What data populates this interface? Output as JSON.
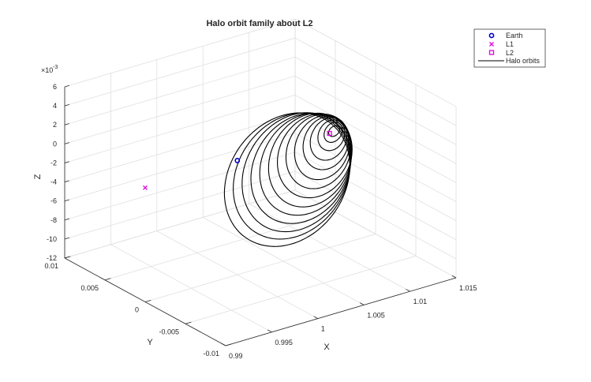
{
  "chart_data": {
    "type": "line3d",
    "title": "Halo orbit family about L2",
    "xlabel": "X",
    "ylabel": "Y",
    "zlabel": "Z",
    "z_exponent": "×10",
    "z_exponent_power": "-3",
    "xlim": [
      0.99,
      1.015
    ],
    "ylim": [
      -0.01,
      0.01
    ],
    "zlim": [
      -12,
      6
    ],
    "x_ticks": [
      "0.99",
      "0.995",
      "1",
      "1.005",
      "1.01",
      "1.015"
    ],
    "y_ticks": [
      "-0.01",
      "-0.005",
      "0",
      "0.005",
      "0.01"
    ],
    "z_ticks": [
      "-12",
      "-10",
      "-8",
      "-6",
      "-4",
      "-2",
      "0",
      "2",
      "4",
      "6"
    ],
    "grid": true,
    "legend_position": "top-right",
    "legend": [
      {
        "label": "Earth",
        "marker": "circle",
        "color": "#0000cc"
      },
      {
        "label": "L1",
        "marker": "x",
        "color": "#e000e0"
      },
      {
        "label": "L2",
        "marker": "square",
        "color": "#e000e0"
      },
      {
        "label": "Halo orbits",
        "marker": "line",
        "color": "#000000"
      }
    ],
    "points": [
      {
        "name": "Earth",
        "x": 1.0,
        "y": 0.0,
        "z": 0.0,
        "color": "#0000cc",
        "marker": "circle"
      },
      {
        "name": "L1",
        "x": 0.99,
        "y": 0.0,
        "z": 0.0,
        "color": "#e000e0",
        "marker": "x"
      },
      {
        "name": "L2",
        "x": 1.01,
        "y": 0.0,
        "z": 0.0,
        "color": "#e000e0",
        "marker": "square"
      }
    ],
    "halo_family": {
      "count": 14,
      "center_x": [
        1.0105,
        1.0104,
        1.0102,
        1.0099,
        1.0096,
        1.0092,
        1.0088,
        1.0084,
        1.0079,
        1.0074,
        1.0069,
        1.0064,
        1.0059,
        1.0054
      ],
      "amp_x": [
        0.0004,
        0.0006,
        0.0008,
        0.0011,
        0.0013,
        0.0016,
        0.0019,
        0.0022,
        0.0025,
        0.0028,
        0.0031,
        0.0034,
        0.0037,
        0.004
      ],
      "amp_y": [
        0.0005,
        0.0009,
        0.0014,
        0.0019,
        0.0024,
        0.0029,
        0.0034,
        0.0039,
        0.0043,
        0.0047,
        0.0051,
        0.0055,
        0.0059,
        0.0063
      ],
      "z_top": [
        0.5,
        0.8,
        1.0,
        1.2,
        1.3,
        1.4,
        1.5,
        1.5,
        1.6,
        1.6,
        1.6,
        1.7,
        1.7,
        1.7
      ],
      "z_bottom": [
        -0.3,
        -0.8,
        -1.5,
        -2.3,
        -3.1,
        -3.9,
        -4.6,
        -5.3,
        -6.0,
        -6.6,
        -7.2,
        -7.8,
        -8.3,
        -8.8
      ]
    }
  }
}
